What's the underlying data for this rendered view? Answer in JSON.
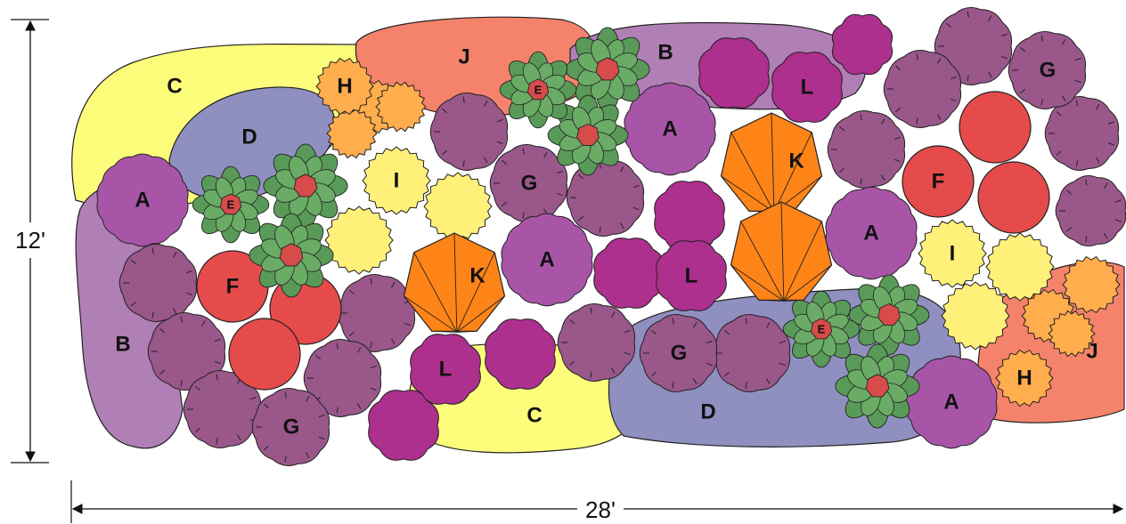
{
  "dimensions": {
    "height_label": "12'",
    "width_label": "28'"
  },
  "colors": {
    "A": "#a855a8",
    "B": "#b07fb5",
    "C": "#fdfd7c",
    "D": "#8f8fc0",
    "E_leaf": "#5a9a58",
    "E_center": "#d84b4b",
    "F": "#e64b4b",
    "G": "#99578a",
    "H": "#ffad4d",
    "I": "#fff07a",
    "J": "#f5826b",
    "K": "#ff8418",
    "L": "#ad2f8e"
  },
  "beds": [
    {
      "key": "C",
      "label": "C"
    },
    {
      "key": "C",
      "label": "C"
    },
    {
      "key": "J",
      "label": "J"
    },
    {
      "key": "J",
      "label": "J"
    },
    {
      "key": "B",
      "label": "B"
    },
    {
      "key": "B",
      "label": "B"
    },
    {
      "key": "D",
      "label": "D"
    },
    {
      "key": "D",
      "label": "D"
    }
  ],
  "plants": [
    {
      "key": "A",
      "label": "A"
    },
    {
      "key": "A",
      "label": "A"
    },
    {
      "key": "A",
      "label": "A"
    },
    {
      "key": "A",
      "label": "A"
    },
    {
      "key": "A",
      "label": "A"
    },
    {
      "key": "G",
      "label": "G"
    },
    {
      "key": "G",
      "label": "G"
    },
    {
      "key": "G",
      "label": "G"
    },
    {
      "key": "G",
      "label": "G"
    },
    {
      "key": "F",
      "label": "F"
    },
    {
      "key": "F",
      "label": "F"
    },
    {
      "key": "L",
      "label": "L"
    },
    {
      "key": "L",
      "label": "L"
    },
    {
      "key": "L",
      "label": "L"
    },
    {
      "key": "H",
      "label": "H"
    },
    {
      "key": "H",
      "label": "H"
    },
    {
      "key": "I",
      "label": "I"
    },
    {
      "key": "I",
      "label": "I"
    },
    {
      "key": "K",
      "label": "K"
    },
    {
      "key": "K",
      "label": "K"
    },
    {
      "key": "E",
      "label": "E"
    },
    {
      "key": "E",
      "label": "E"
    },
    {
      "key": "E",
      "label": "E"
    }
  ]
}
